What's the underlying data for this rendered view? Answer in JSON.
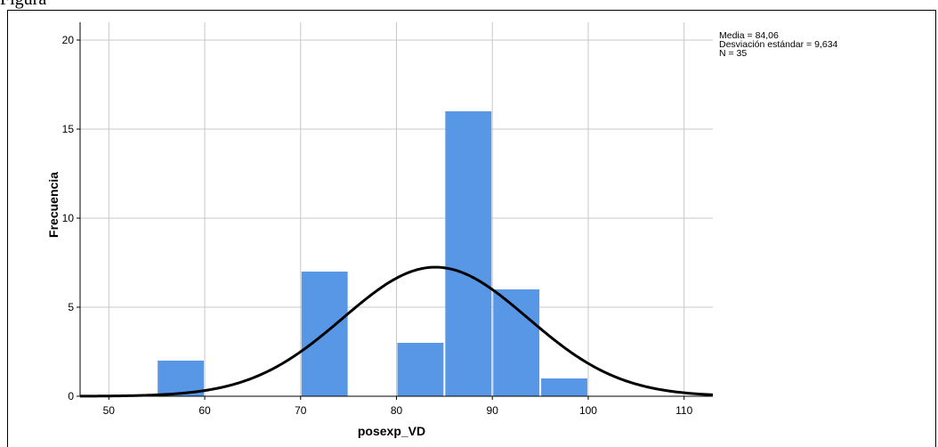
{
  "caption": "Figura",
  "chart_data": {
    "type": "bar",
    "xlabel": "posexp_VD",
    "ylabel": "Frecuencia",
    "xlim": [
      47,
      113
    ],
    "ylim": [
      0,
      21
    ],
    "x_ticks": [
      50,
      60,
      70,
      80,
      90,
      100,
      110
    ],
    "y_ticks": [
      0,
      5,
      10,
      15,
      20
    ],
    "grid": true,
    "bins": [
      {
        "start": 55,
        "end": 60,
        "count": 2
      },
      {
        "start": 70,
        "end": 75,
        "count": 7
      },
      {
        "start": 80,
        "end": 85,
        "count": 3
      },
      {
        "start": 85,
        "end": 90,
        "count": 16
      },
      {
        "start": 90,
        "end": 95,
        "count": 6
      },
      {
        "start": 95,
        "end": 100,
        "count": 1
      }
    ],
    "bar_color": "#5897e6",
    "normal_curve": {
      "mean": 84.06,
      "std": 9.634,
      "n": 35,
      "bin_width": 5
    },
    "stats": {
      "mean": "Media = 84,06",
      "std": "Desviación estándar = 9,634",
      "n": "N = 35"
    }
  }
}
